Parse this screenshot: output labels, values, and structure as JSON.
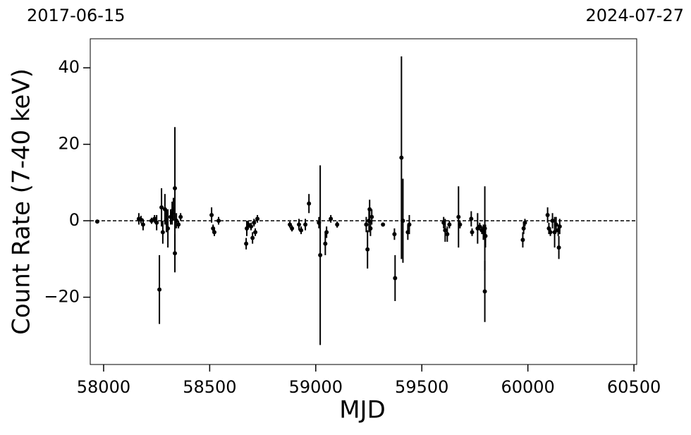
{
  "chart_data": {
    "type": "errorbar",
    "xlabel": "MJD",
    "ylabel": "Count Rate (7-40 keV)",
    "top_labels": [
      "2017-06-15",
      "2024-07-27"
    ],
    "xlim": [
      57937,
      60513
    ],
    "ylim": [
      -37.6,
      47.6
    ],
    "xticks": [
      58000,
      58500,
      59000,
      59500,
      60000,
      60500
    ],
    "yticks": [
      {
        "value": -20,
        "label": "−20"
      },
      0,
      20,
      40
    ],
    "hline": 0,
    "series": [
      {
        "color": "#000000",
        "x": [
          57970,
          58166,
          58176,
          58186,
          58226,
          58240,
          58250,
          58263,
          58273,
          58279,
          58289,
          58296,
          58303,
          58316,
          58323,
          58329,
          58336,
          58336,
          58343,
          58353,
          58363,
          58509,
          58516,
          58522,
          58542,
          58672,
          58675,
          58682,
          58695,
          58702,
          58709,
          58715,
          58725,
          58878,
          58888,
          58921,
          58931,
          58951,
          58968,
          59015,
          59021,
          59045,
          59051,
          59071,
          59101,
          59238,
          59244,
          59251,
          59254,
          59258,
          59264,
          59317,
          59371,
          59374,
          59404,
          59411,
          59434,
          59441,
          59603,
          59610,
          59620,
          59630,
          59673,
          59680,
          59733,
          59737,
          59763,
          59773,
          59783,
          59790,
          59797,
          59797,
          59800,
          59976,
          59980,
          59986,
          60093,
          60099,
          60106,
          60116,
          60126,
          60133,
          60143,
          60146,
          60150
        ],
        "values": [
          -0.2,
          0.5,
          0.3,
          -1,
          0,
          0.5,
          -0.5,
          -18,
          3.5,
          -3,
          3,
          0,
          -2,
          1,
          2,
          3,
          8.5,
          -8.5,
          0,
          -1,
          1,
          1.5,
          -2,
          -3,
          0,
          -6,
          -2,
          -1,
          -1.5,
          -4.5,
          -0.5,
          -3,
          0.5,
          -1,
          -2,
          -1,
          -2.5,
          -1,
          4.5,
          -0.5,
          -9,
          -6,
          -3,
          0.5,
          -1,
          -1,
          -7.5,
          0,
          3,
          -2,
          1,
          -1,
          -3.5,
          -15,
          16.5,
          0,
          -3,
          -1,
          -0.5,
          -2.5,
          -3.5,
          -1,
          1,
          -1,
          0.5,
          -3,
          -2,
          -1.5,
          -2.5,
          -3,
          -18.5,
          -2,
          -4,
          -5,
          -2,
          -0.5,
          1.5,
          -2,
          -3,
          0,
          -3,
          -1,
          -2.5,
          -7,
          -1.5
        ],
        "errors": [
          0.5,
          1.5,
          1,
          1.5,
          0.8,
          1,
          2,
          9,
          5,
          3,
          4,
          3,
          5,
          2,
          3,
          3,
          16,
          5,
          2,
          1,
          1,
          2,
          1,
          1,
          1,
          1.5,
          2,
          1,
          1,
          1.5,
          1,
          1,
          1,
          0.8,
          0.8,
          1.5,
          1,
          1.5,
          2.5,
          1.5,
          23.5,
          3,
          1.5,
          1,
          0.8,
          2,
          5,
          3,
          2.5,
          2,
          2,
          0.5,
          1.5,
          6,
          26.5,
          11,
          2,
          2.5,
          1.5,
          3,
          2,
          1,
          8,
          1,
          2,
          1,
          4,
          1,
          1,
          2,
          8,
          11,
          3,
          2,
          1.5,
          1,
          2,
          1.5,
          1,
          2,
          4,
          2,
          1.5,
          3,
          2
        ]
      }
    ]
  }
}
